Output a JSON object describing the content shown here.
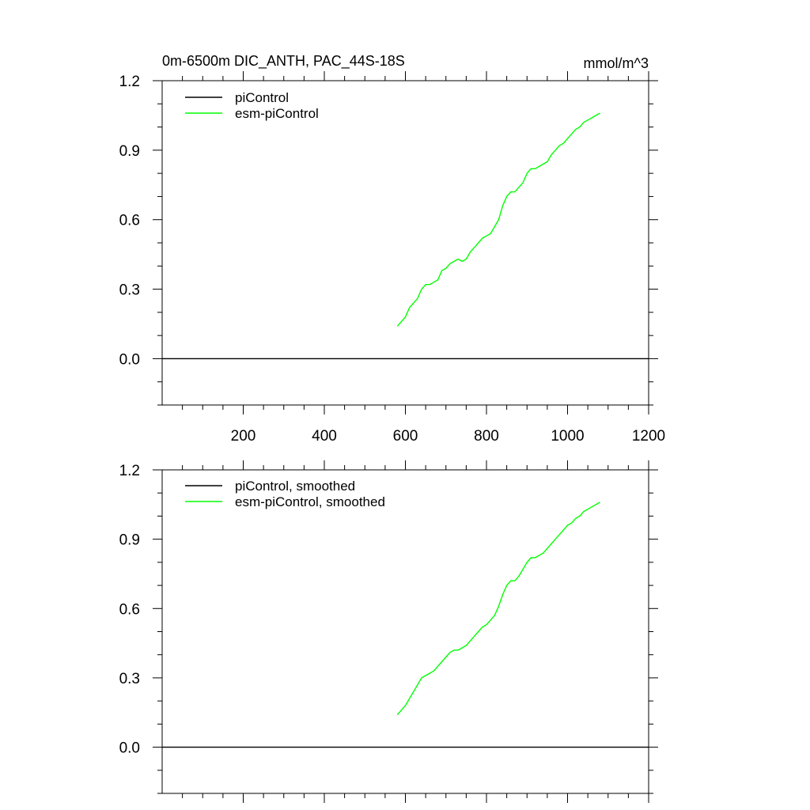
{
  "chart_data": [
    {
      "type": "line",
      "title": "0m-6500m DIC_ANTH, PAC_44S-18S",
      "units": "mmol/m^3",
      "xlim": [
        0,
        1200
      ],
      "ylim": [
        -0.2,
        1.2
      ],
      "xticks": [
        200,
        400,
        600,
        800,
        1000,
        1200
      ],
      "xtick_labels": [
        "200",
        "400",
        "600",
        "800",
        "1000",
        "1200"
      ],
      "yticks": [
        0.0,
        0.3,
        0.6,
        0.9,
        1.2
      ],
      "ytick_labels": [
        "0.0",
        "0.3",
        "0.6",
        "0.9",
        "1.2"
      ],
      "legend_position": "top-left",
      "grid": false,
      "series": [
        {
          "name": "piControl",
          "color": "#000000",
          "x": [
            0,
            1200
          ],
          "y": [
            0.0,
            0.0
          ]
        },
        {
          "name": "esm-piControl",
          "color": "#00ff00",
          "x": [
            580,
            590,
            600,
            610,
            620,
            630,
            640,
            650,
            660,
            670,
            680,
            690,
            700,
            710,
            720,
            730,
            740,
            750,
            760,
            770,
            780,
            790,
            800,
            810,
            820,
            830,
            840,
            850,
            860,
            870,
            880,
            890,
            900,
            910,
            920,
            930,
            940,
            950,
            960,
            970,
            980,
            990,
            1000,
            1010,
            1020,
            1030,
            1040,
            1050,
            1060,
            1070,
            1080
          ],
          "y": [
            0.14,
            0.16,
            0.18,
            0.22,
            0.24,
            0.26,
            0.3,
            0.32,
            0.32,
            0.33,
            0.34,
            0.38,
            0.39,
            0.41,
            0.42,
            0.43,
            0.42,
            0.43,
            0.46,
            0.48,
            0.5,
            0.52,
            0.53,
            0.54,
            0.57,
            0.6,
            0.66,
            0.7,
            0.72,
            0.72,
            0.74,
            0.76,
            0.8,
            0.82,
            0.82,
            0.83,
            0.84,
            0.85,
            0.88,
            0.9,
            0.92,
            0.93,
            0.95,
            0.97,
            0.99,
            1.0,
            1.02,
            1.03,
            1.04,
            1.05,
            1.06
          ]
        }
      ]
    },
    {
      "type": "line",
      "xlim": [
        0,
        1200
      ],
      "ylim": [
        -0.2,
        1.2
      ],
      "xticks": [
        200,
        400,
        600,
        800,
        1000,
        1200
      ],
      "yticks": [
        0.0,
        0.3,
        0.6,
        0.9,
        1.2
      ],
      "ytick_labels": [
        "0.0",
        "0.3",
        "0.6",
        "0.9",
        "1.2"
      ],
      "legend_position": "top-left",
      "grid": false,
      "series": [
        {
          "name": "piControl, smoothed",
          "color": "#000000",
          "x": [
            0,
            1200
          ],
          "y": [
            0.0,
            0.0
          ]
        },
        {
          "name": "esm-piControl, smoothed",
          "color": "#00ff00",
          "x": [
            580,
            590,
            600,
            610,
            620,
            630,
            640,
            650,
            660,
            670,
            680,
            690,
            700,
            710,
            720,
            730,
            740,
            750,
            760,
            770,
            780,
            790,
            800,
            810,
            820,
            830,
            840,
            850,
            860,
            870,
            880,
            890,
            900,
            910,
            920,
            930,
            940,
            950,
            960,
            970,
            980,
            990,
            1000,
            1010,
            1020,
            1030,
            1040,
            1050,
            1060,
            1070,
            1080
          ],
          "y": [
            0.14,
            0.16,
            0.18,
            0.21,
            0.24,
            0.27,
            0.3,
            0.31,
            0.32,
            0.33,
            0.35,
            0.37,
            0.39,
            0.41,
            0.42,
            0.42,
            0.43,
            0.44,
            0.46,
            0.48,
            0.5,
            0.52,
            0.53,
            0.55,
            0.57,
            0.61,
            0.66,
            0.7,
            0.72,
            0.72,
            0.74,
            0.77,
            0.8,
            0.82,
            0.82,
            0.83,
            0.84,
            0.86,
            0.88,
            0.9,
            0.92,
            0.94,
            0.96,
            0.97,
            0.99,
            1.0,
            1.02,
            1.03,
            1.04,
            1.05,
            1.06
          ]
        }
      ]
    }
  ]
}
